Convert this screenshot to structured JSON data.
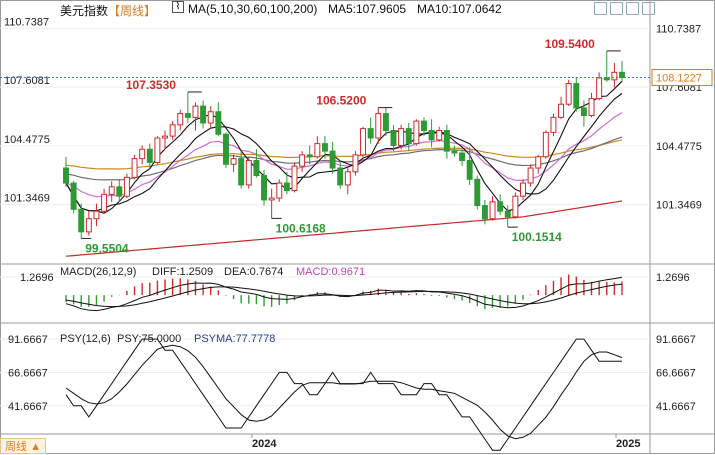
{
  "header": {
    "symbol": "美元指数",
    "period": "【周线】",
    "ma_label": "MA(5,10,30,60,100,200)",
    "ma5": "MA5:107.9605",
    "ma10": "MA10:107.0642"
  },
  "toolbar": {
    "icons": [
      "expand-icon",
      "layout-icon",
      "panel-icon",
      "close-icon"
    ]
  },
  "footer": {
    "period_button": "周线 ▲"
  },
  "colors": {
    "up": "#cf2a2a",
    "down": "#2f9a35",
    "ma5": "#111111",
    "ma10": "#111111",
    "ma30": "#d46bd4",
    "ma60": "#6f6f6f",
    "ma100": "#cc8a1e",
    "ma200": "#c42a2a",
    "macd_dif": "#111111",
    "psy": "#111111",
    "psyma": "#111111"
  },
  "chart_data": [
    {
      "type": "candlestick",
      "panel": "price",
      "title": "美元指数",
      "y_ticks": [
        "110.7387",
        "107.6081",
        "104.4775",
        "101.3469"
      ],
      "ylim": [
        98.4,
        111.4
      ],
      "current_price": "108.1227",
      "annotations": [
        {
          "label": "107.3530",
          "kind": "high"
        },
        {
          "label": "99.5504",
          "kind": "low"
        },
        {
          "label": "100.6168",
          "kind": "low"
        },
        {
          "label": "106.5200",
          "kind": "high"
        },
        {
          "label": "100.1514",
          "kind": "low"
        },
        {
          "label": "109.5400",
          "kind": "high"
        }
      ],
      "candles": [
        [
          103.3,
          103.9,
          102.3,
          102.5
        ],
        [
          102.5,
          102.6,
          100.9,
          101.1
        ],
        [
          101.1,
          101.4,
          99.55,
          99.9
        ],
        [
          99.9,
          101.0,
          99.7,
          100.6
        ],
        [
          100.6,
          101.4,
          100.2,
          101.0
        ],
        [
          101.0,
          102.2,
          100.9,
          101.9
        ],
        [
          101.9,
          102.6,
          101.5,
          102.3
        ],
        [
          102.3,
          102.7,
          101.5,
          101.8
        ],
        [
          101.8,
          103.0,
          101.7,
          102.8
        ],
        [
          102.8,
          104.0,
          102.7,
          103.8
        ],
        [
          103.8,
          104.5,
          103.5,
          104.3
        ],
        [
          104.3,
          104.6,
          103.3,
          103.6
        ],
        [
          103.6,
          105.0,
          103.5,
          104.9
        ],
        [
          104.9,
          105.3,
          104.3,
          105.0
        ],
        [
          105.0,
          105.8,
          104.8,
          105.6
        ],
        [
          105.6,
          106.4,
          105.3,
          106.2
        ],
        [
          106.2,
          107.35,
          105.7,
          106.0
        ],
        [
          106.0,
          106.8,
          105.3,
          106.6
        ],
        [
          106.6,
          106.9,
          105.4,
          105.7
        ],
        [
          105.7,
          106.6,
          105.4,
          106.3
        ],
        [
          106.3,
          106.8,
          105.0,
          105.1
        ],
        [
          105.1,
          105.2,
          103.3,
          103.5
        ],
        [
          103.5,
          104.0,
          103.1,
          103.8
        ],
        [
          103.8,
          104.2,
          102.2,
          102.4
        ],
        [
          102.4,
          103.9,
          102.2,
          103.7
        ],
        [
          103.7,
          104.3,
          102.8,
          102.9
        ],
        [
          102.9,
          103.2,
          101.3,
          101.6
        ],
        [
          101.6,
          102.2,
          100.62,
          101.7
        ],
        [
          101.7,
          102.7,
          101.5,
          102.5
        ],
        [
          102.5,
          103.1,
          101.9,
          102.1
        ],
        [
          102.1,
          103.6,
          102.0,
          103.4
        ],
        [
          103.4,
          104.2,
          103.1,
          104.0
        ],
        [
          104.0,
          104.5,
          103.5,
          103.9
        ],
        [
          103.9,
          105.0,
          103.8,
          104.6
        ],
        [
          104.6,
          105.0,
          103.8,
          104.2
        ],
        [
          104.2,
          104.7,
          103.0,
          103.3
        ],
        [
          103.3,
          103.7,
          102.2,
          102.4
        ],
        [
          102.4,
          103.3,
          101.9,
          103.1
        ],
        [
          103.1,
          104.2,
          102.9,
          104.0
        ],
        [
          104.0,
          105.5,
          103.8,
          105.4
        ],
        [
          105.4,
          106.0,
          104.6,
          104.9
        ],
        [
          104.9,
          106.52,
          104.6,
          106.2
        ],
        [
          106.2,
          106.5,
          105.0,
          105.3
        ],
        [
          105.3,
          105.6,
          104.2,
          104.5
        ],
        [
          104.5,
          105.6,
          104.3,
          105.4
        ],
        [
          105.4,
          105.7,
          104.2,
          104.6
        ],
        [
          104.6,
          105.9,
          104.5,
          105.8
        ],
        [
          105.8,
          106.0,
          105.0,
          105.3
        ],
        [
          105.3,
          105.9,
          104.4,
          104.8
        ],
        [
          104.8,
          105.5,
          104.7,
          105.3
        ],
        [
          105.3,
          105.6,
          103.8,
          104.2
        ],
        [
          104.2,
          104.5,
          103.9,
          104.1
        ],
        [
          104.1,
          104.3,
          103.4,
          103.7
        ],
        [
          103.7,
          104.4,
          102.4,
          102.7
        ],
        [
          102.7,
          102.9,
          101.1,
          101.3
        ],
        [
          101.3,
          101.6,
          100.3,
          100.6
        ],
        [
          100.6,
          101.8,
          100.5,
          101.5
        ],
        [
          101.5,
          101.9,
          100.8,
          101.0
        ],
        [
          101.0,
          101.3,
          100.15,
          100.7
        ],
        [
          100.7,
          102.0,
          100.6,
          101.8
        ],
        [
          101.8,
          102.7,
          101.6,
          102.5
        ],
        [
          102.5,
          103.5,
          102.3,
          103.3
        ],
        [
          103.3,
          104.0,
          103.0,
          103.9
        ],
        [
          103.9,
          105.3,
          103.8,
          105.2
        ],
        [
          105.2,
          106.2,
          105.0,
          106.0
        ],
        [
          106.0,
          107.1,
          105.9,
          106.7
        ],
        [
          106.7,
          108.0,
          106.6,
          107.8
        ],
        [
          107.8,
          108.1,
          106.3,
          106.5
        ],
        [
          106.5,
          106.9,
          105.5,
          106.1
        ],
        [
          106.1,
          107.3,
          106.0,
          107.0
        ],
        [
          107.0,
          108.4,
          106.9,
          108.1
        ],
        [
          108.1,
          109.54,
          107.9,
          108.0
        ],
        [
          108.0,
          108.9,
          107.6,
          108.4
        ],
        [
          108.4,
          109.0,
          107.9,
          108.12
        ]
      ]
    },
    {
      "type": "macd",
      "panel": "macd",
      "title": "MACD(26,12,9)",
      "dif_label": "DIFF:1.2509",
      "dea_label": "DEA:0.7674",
      "macd_label": "MACD:0.9671",
      "y_ticks": [
        "1.2696"
      ],
      "ylim": [
        -1.6,
        1.9
      ],
      "dif": [
        -0.6,
        -0.75,
        -0.95,
        -1.05,
        -1.08,
        -1.0,
        -0.86,
        -0.78,
        -0.6,
        -0.38,
        -0.15,
        -0.02,
        0.18,
        0.35,
        0.52,
        0.68,
        0.78,
        0.85,
        0.83,
        0.84,
        0.75,
        0.56,
        0.42,
        0.22,
        0.14,
        0.05,
        -0.12,
        -0.24,
        -0.27,
        -0.3,
        -0.23,
        -0.1,
        -0.02,
        0.08,
        0.1,
        0.03,
        -0.08,
        -0.1,
        -0.02,
        0.14,
        0.2,
        0.34,
        0.34,
        0.28,
        0.3,
        0.27,
        0.32,
        0.3,
        0.23,
        0.22,
        0.14,
        0.06,
        -0.04,
        -0.2,
        -0.42,
        -0.64,
        -0.72,
        -0.82,
        -0.88,
        -0.86,
        -0.76,
        -0.58,
        -0.38,
        -0.12,
        0.15,
        0.42,
        0.7,
        0.79,
        0.8,
        0.86,
        0.98,
        1.08,
        1.16,
        1.2509
      ],
      "dea": [
        -0.35,
        -0.43,
        -0.54,
        -0.64,
        -0.73,
        -0.78,
        -0.8,
        -0.79,
        -0.75,
        -0.68,
        -0.57,
        -0.46,
        -0.33,
        -0.2,
        -0.06,
        0.09,
        0.23,
        0.36,
        0.46,
        0.54,
        0.58,
        0.58,
        0.56,
        0.5,
        0.44,
        0.37,
        0.27,
        0.17,
        0.08,
        -0.0,
        -0.05,
        -0.06,
        -0.05,
        -0.03,
        -0.0,
        0.0,
        -0.01,
        -0.03,
        -0.03,
        0.01,
        0.05,
        0.11,
        0.16,
        0.19,
        0.21,
        0.23,
        0.25,
        0.26,
        0.26,
        0.25,
        0.23,
        0.2,
        0.15,
        0.08,
        -0.03,
        -0.15,
        -0.27,
        -0.38,
        -0.48,
        -0.56,
        -0.6,
        -0.6,
        -0.56,
        -0.47,
        -0.35,
        -0.2,
        -0.02,
        0.14,
        0.27,
        0.39,
        0.51,
        0.62,
        0.71,
        0.7674
      ],
      "hist": [
        -0.5,
        -0.64,
        -0.82,
        -0.82,
        -0.7,
        -0.44,
        -0.12,
        0.02,
        0.3,
        0.6,
        0.84,
        0.88,
        1.02,
        1.1,
        1.16,
        1.18,
        1.1,
        0.98,
        0.74,
        0.6,
        0.34,
        -0.04,
        -0.28,
        -0.56,
        -0.6,
        -0.64,
        -0.78,
        -0.82,
        -0.7,
        -0.6,
        -0.36,
        -0.08,
        0.06,
        0.22,
        0.2,
        0.06,
        -0.14,
        -0.14,
        0.02,
        0.26,
        0.3,
        0.46,
        0.36,
        0.18,
        0.18,
        0.08,
        0.14,
        0.08,
        -0.06,
        -0.06,
        -0.18,
        -0.28,
        -0.38,
        -0.56,
        -0.78,
        -0.98,
        -0.9,
        -0.88,
        -0.8,
        -0.6,
        -0.32,
        0.04,
        0.36,
        0.7,
        1.0,
        1.24,
        1.44,
        1.3,
        1.06,
        0.94,
        0.94,
        0.92,
        0.9,
        0.9671
      ]
    },
    {
      "type": "line",
      "panel": "psy",
      "title": "PSY(12,6)",
      "psy_label": "PSY:75.0000",
      "psyma_label": "PSYMA:77.7778",
      "y_ticks": [
        "91.6667",
        "66.6667",
        "41.6667"
      ],
      "ylim": [
        22,
        100
      ],
      "psy": [
        50,
        41.67,
        41.67,
        33.33,
        41.67,
        50,
        58.33,
        66.67,
        75,
        83.33,
        91.67,
        91.67,
        91.67,
        83.33,
        83.33,
        75,
        66.67,
        58.33,
        50,
        41.67,
        33.33,
        25,
        25,
        25,
        33.33,
        41.67,
        50,
        58.33,
        66.67,
        66.67,
        58.33,
        58.33,
        50,
        50,
        58.33,
        66.67,
        58.33,
        58.33,
        58.33,
        58.33,
        66.67,
        58.33,
        58.33,
        58.33,
        50,
        50,
        50,
        58.33,
        58.33,
        50,
        50,
        41.67,
        33.33,
        33.33,
        25,
        16.67,
        8.33,
        8.33,
        16.67,
        25,
        33.33,
        41.67,
        50,
        58.33,
        66.67,
        75,
        83.33,
        91.67,
        91.67,
        83.33,
        75,
        75,
        75,
        75
      ],
      "psyma": [
        55,
        51,
        47,
        44,
        43,
        44,
        47,
        52,
        58,
        65,
        72,
        78,
        84,
        86,
        87,
        86,
        83,
        78,
        71,
        63,
        55,
        47,
        41,
        35,
        31,
        30,
        31,
        34,
        40,
        46,
        52,
        57,
        59,
        59,
        59,
        59,
        58,
        58,
        58,
        59,
        60,
        60,
        60,
        60,
        59,
        57,
        55,
        54,
        54,
        53,
        52,
        51,
        48,
        45,
        42,
        37,
        31,
        24,
        19,
        17,
        18,
        21,
        27,
        33,
        41,
        50,
        58,
        67,
        75,
        80,
        82,
        82,
        80,
        77.7778
      ]
    }
  ],
  "x_axis": {
    "labels": [
      "2024",
      "2025"
    ]
  }
}
